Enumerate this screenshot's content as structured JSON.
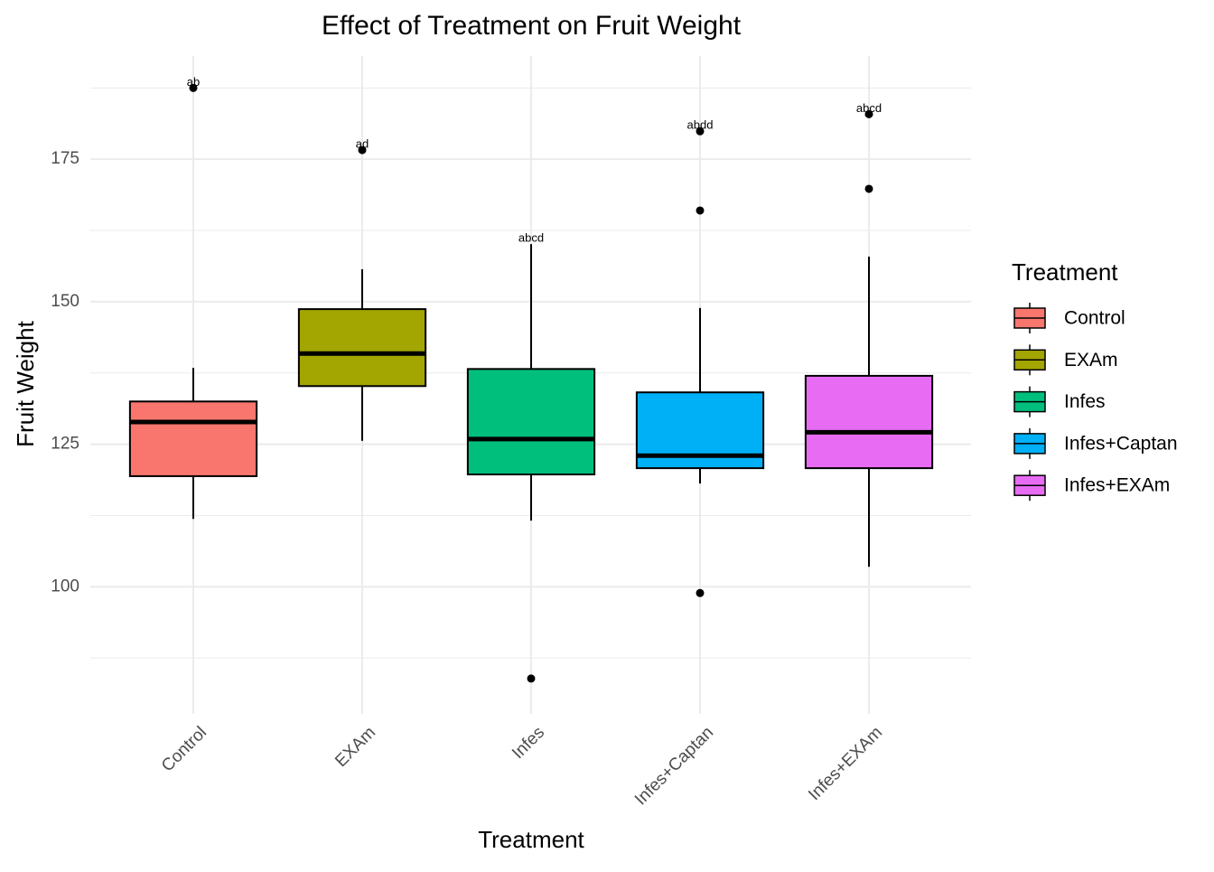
{
  "chart_data": {
    "type": "box",
    "title": "Effect of Treatment on Fruit Weight",
    "x_label": "Treatment",
    "y_label": "Fruit Weight",
    "legend_title": "Treatment",
    "categories": [
      "Control",
      "EXAm",
      "Infes",
      "Infes+Captan",
      "Infes+EXAm"
    ],
    "colors": [
      "#F8766D",
      "#A3A500",
      "#00BF7D",
      "#00B0F6",
      "#E76BF3"
    ],
    "whislo": [
      111.9,
      125.6,
      111.6,
      118.1,
      103.5
    ],
    "q1": [
      119.4,
      135.2,
      119.7,
      120.8,
      120.8
    ],
    "median": [
      128.9,
      140.9,
      125.9,
      123.0,
      127.1
    ],
    "q3": [
      132.5,
      148.7,
      138.2,
      134.1,
      137.0
    ],
    "whishi": [
      138.4,
      155.7,
      160.1,
      148.9,
      157.9
    ],
    "outliers": [
      [
        187.5
      ],
      [
        176.6
      ],
      [
        83.9
      ],
      [
        166.0,
        98.9,
        179.9
      ],
      [
        169.8,
        182.9
      ]
    ],
    "letters": [
      "ab",
      "ad",
      "abcd",
      "abdd",
      "abcd"
    ],
    "ylim": [
      77.7,
      193.1
    ],
    "yticks": [
      100,
      125,
      150,
      175
    ],
    "minor_yticks": [
      87.5,
      112.5,
      137.5,
      162.5,
      187.5
    ],
    "grid": true,
    "legend": "right"
  }
}
